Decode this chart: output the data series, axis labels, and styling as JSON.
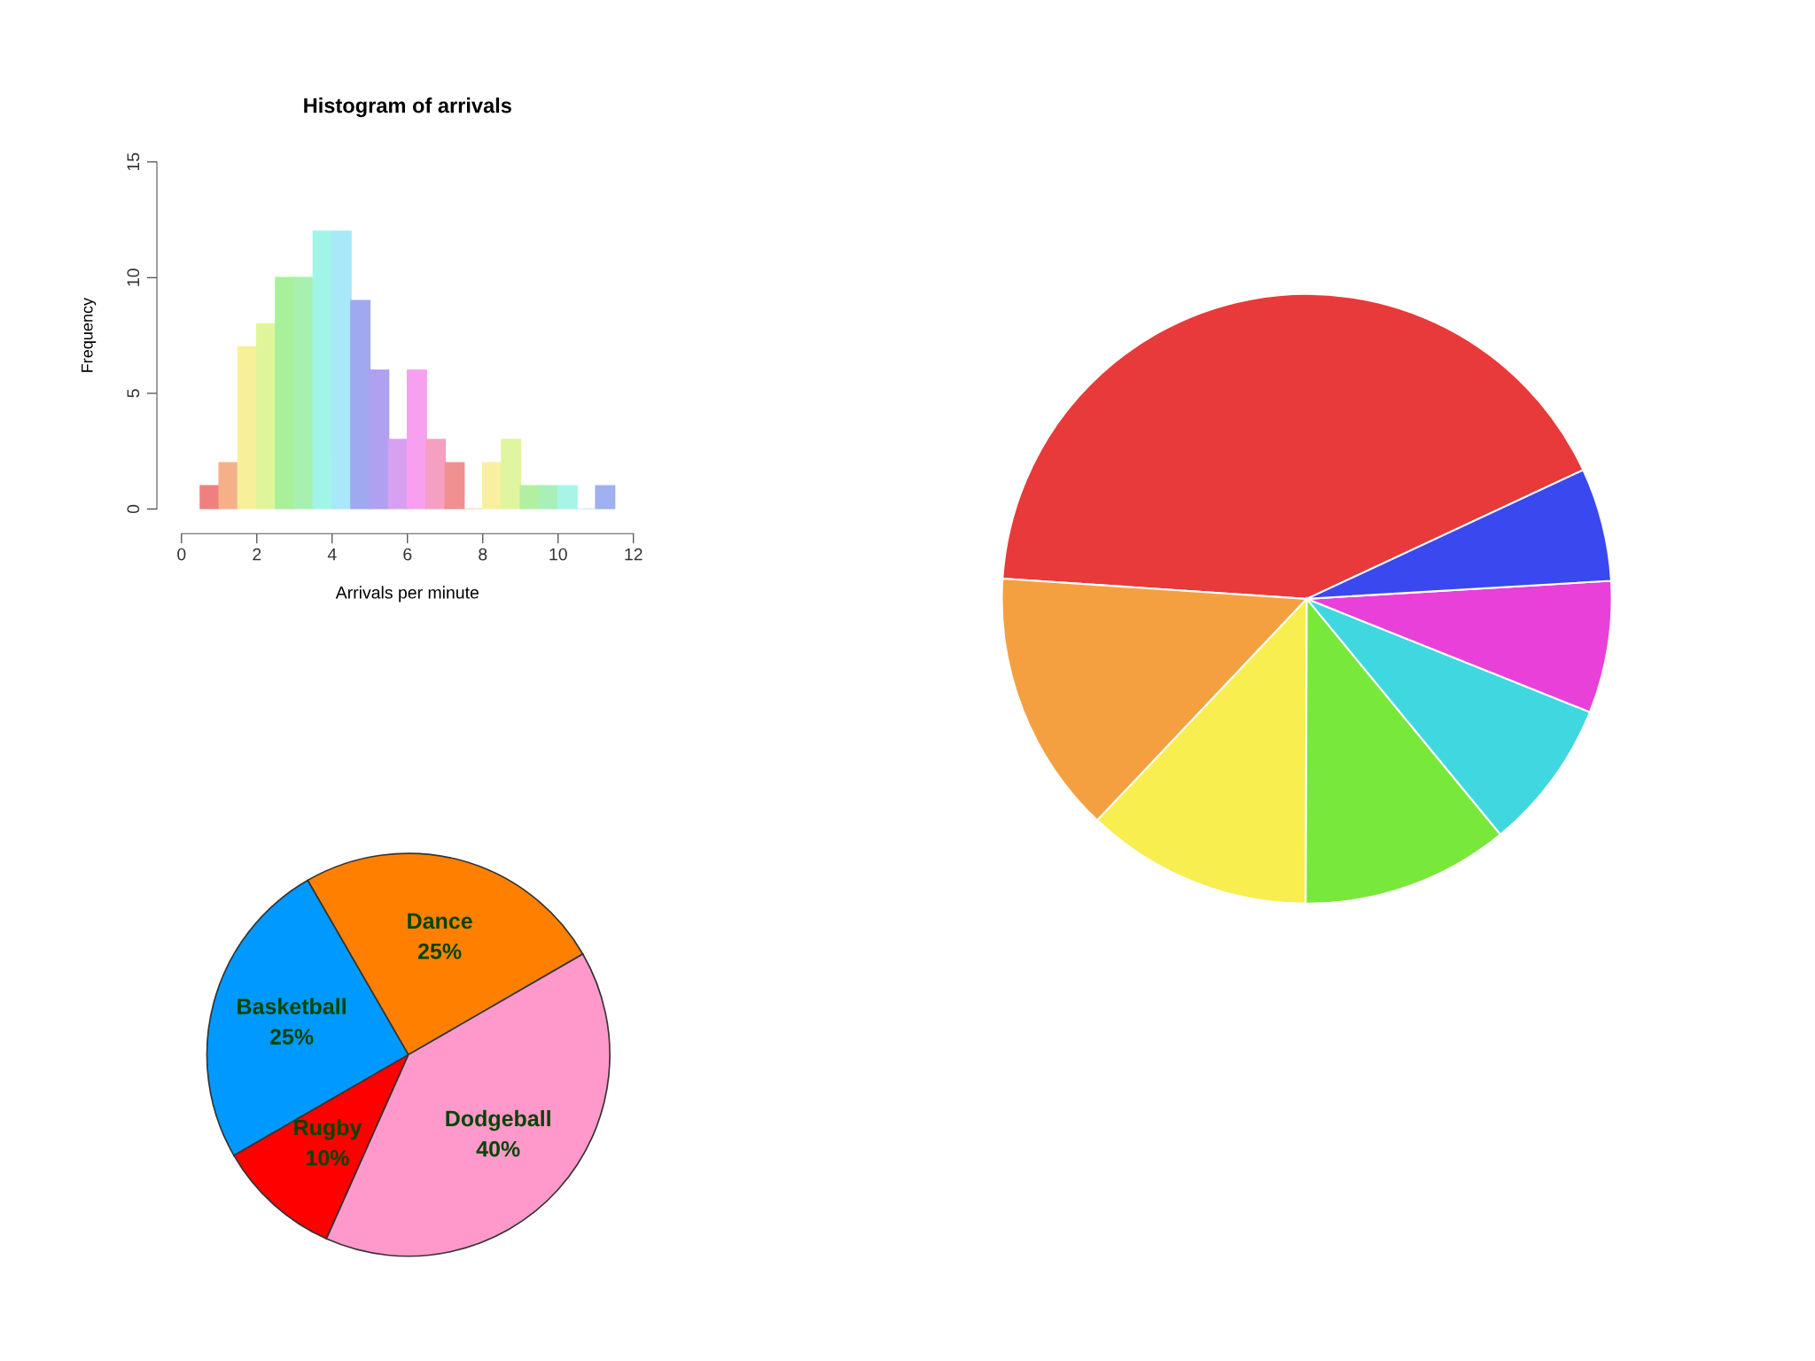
{
  "chart_data": [
    {
      "type": "histogram",
      "title": "Histogram of arrivals",
      "xlabel": "Arrivals per minute",
      "ylabel": "Frequency",
      "bins": [
        0.5,
        1,
        1.5,
        2,
        2.5,
        3,
        3.5,
        4,
        4.5,
        5,
        5.5,
        6,
        6.5,
        7,
        7.5,
        8,
        8.5,
        9,
        9.5,
        10,
        10.5,
        11,
        11.5
      ],
      "values": [
        1,
        2,
        7,
        8,
        10,
        10,
        12,
        12,
        9,
        6,
        3,
        6,
        3,
        2,
        0,
        2,
        3,
        1,
        1,
        1,
        0,
        1
      ],
      "colors": [
        "#f08080",
        "#f5b08a",
        "#f8ef9a",
        "#e0f59a",
        "#a8f09a",
        "#a8f0b0",
        "#a0f5e8",
        "#a8e8f8",
        "#a0a8f0",
        "#b0a0f0",
        "#d8a0f0",
        "#f8a0f0",
        "#f5a0c0",
        "#f09090",
        "#f5c090",
        "#f8f0a0",
        "#e0f5a0",
        "#b0f0a0",
        "#a8f0b8",
        "#a8f5e8",
        "#a8e0f5",
        "#a0b0f0"
      ],
      "xlim": [
        0,
        12
      ],
      "xticks": [
        0,
        2,
        4,
        6,
        8,
        10,
        12
      ],
      "ylim": [
        0,
        15
      ],
      "yticks": [
        0,
        5,
        10,
        15
      ],
      "grid": false
    },
    {
      "type": "pie",
      "categories": [
        null,
        null,
        null,
        null,
        null,
        null,
        null
      ],
      "values": [
        42,
        14,
        12,
        11,
        8,
        7,
        6
      ],
      "colors": [
        "#e83a3a",
        "#f5a040",
        "#f8ee50",
        "#78e83a",
        "#40d8e0",
        "#e840d8",
        "#3a48f0"
      ]
    },
    {
      "type": "pie",
      "categories": [
        "Dance",
        "Basketball",
        "Rugby",
        "Dodgeball"
      ],
      "values": [
        25,
        25,
        10,
        40
      ],
      "colors": [
        "#ff8000",
        "#0099ff",
        "#ff0000",
        "#ff99cc"
      ],
      "value_labels": [
        "25%",
        "25%",
        "10%",
        "40%"
      ]
    }
  ]
}
